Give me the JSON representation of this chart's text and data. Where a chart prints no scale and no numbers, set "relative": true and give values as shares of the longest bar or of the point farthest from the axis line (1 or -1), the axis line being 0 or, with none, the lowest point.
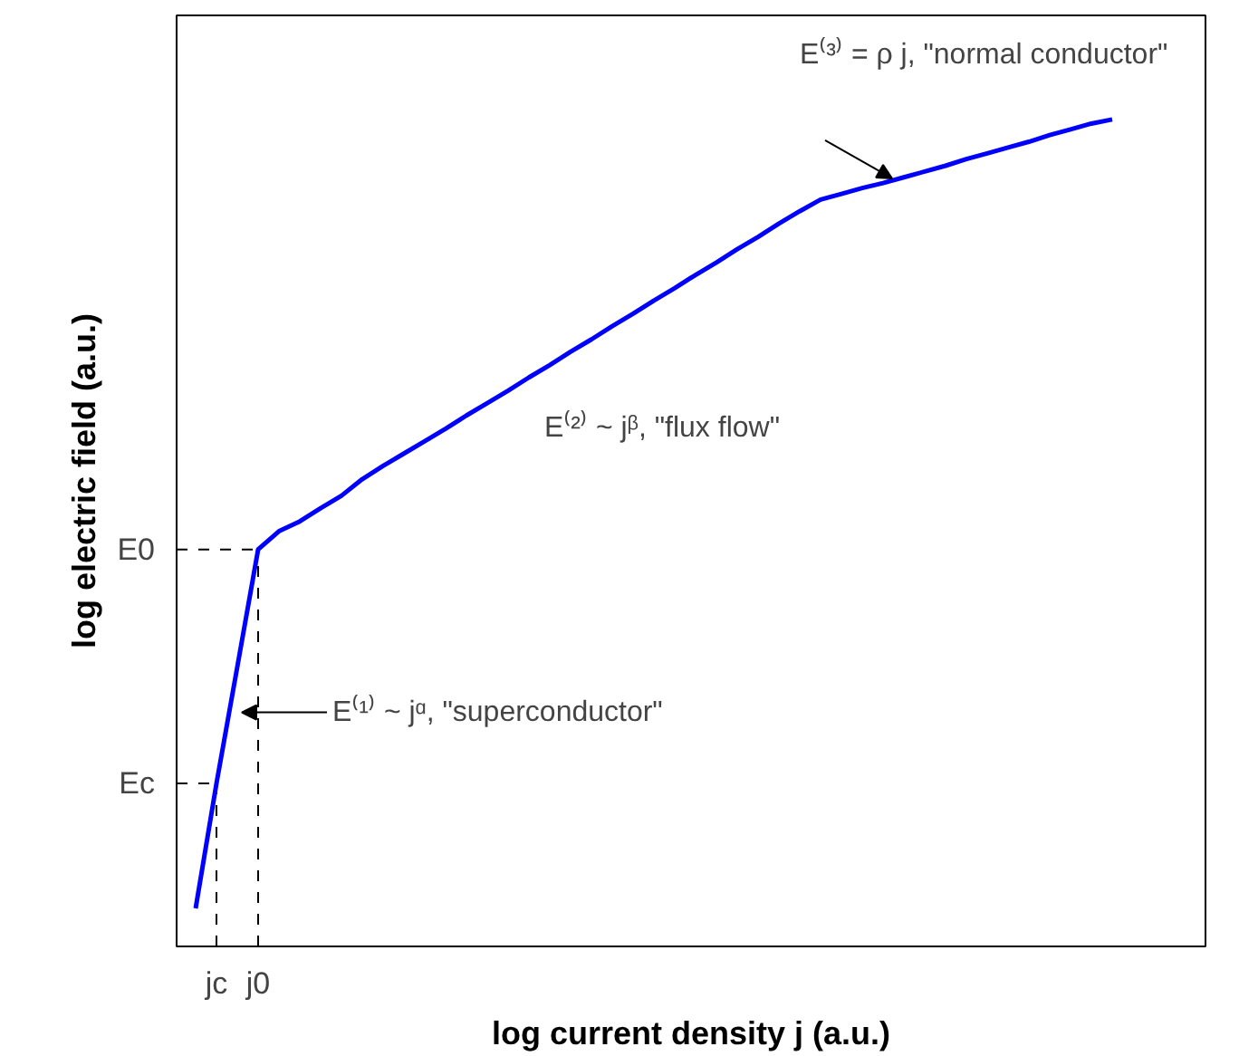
{
  "chart_data": {
    "type": "line",
    "relative": true,
    "xlabel": "log current density j (a.u.)",
    "ylabel": "log electric field (a.u.)",
    "categories": [
      null,
      "jc",
      null,
      "j0",
      null,
      null,
      null,
      null,
      null,
      null,
      null,
      null,
      null,
      null,
      null,
      null,
      null,
      null,
      null,
      null,
      null,
      null,
      null,
      null,
      null,
      null,
      null,
      null,
      null,
      null,
      null,
      null,
      null,
      null,
      null,
      null,
      null,
      null,
      null,
      null,
      null,
      null,
      null,
      null,
      null
    ],
    "series": [
      {
        "color": "#0000ff",
        "values": [
          0.046,
          0.197,
          0.338,
          0.48,
          0.502,
          0.514,
          0.53,
          0.545,
          0.565,
          0.581,
          0.596,
          0.611,
          0.626,
          0.642,
          0.657,
          0.672,
          0.688,
          0.703,
          0.719,
          0.734,
          0.75,
          0.765,
          0.781,
          0.796,
          0.812,
          0.827,
          0.843,
          0.858,
          0.874,
          0.889,
          0.903,
          0.91,
          0.917,
          0.923,
          0.93,
          0.937,
          0.944,
          0.952,
          0.959,
          0.966,
          0.973,
          0.981,
          0.988,
          0.995,
          1.0
        ]
      }
    ],
    "ref_lines": [
      {
        "axis": "y",
        "value": 0.48,
        "label": "E0",
        "line_style": "dashed"
      },
      {
        "axis": "y",
        "value": 0.197,
        "label": "Ec",
        "line_style": "dashed"
      },
      {
        "axis": "x",
        "value": "jc",
        "line_style": "dashed"
      },
      {
        "axis": "x",
        "value": "j0",
        "line_style": "dashed"
      }
    ],
    "annotations": [
      "E⁽³⁾ = ρ j, \"normal conductor\"",
      "E⁽²⁾ ~ jᵝ, \"flux flow\"",
      "E⁽¹⁾ ~ jᵅ, \"superconductor\""
    ],
    "grid": false,
    "line_style": "solid",
    "marker": "none"
  }
}
